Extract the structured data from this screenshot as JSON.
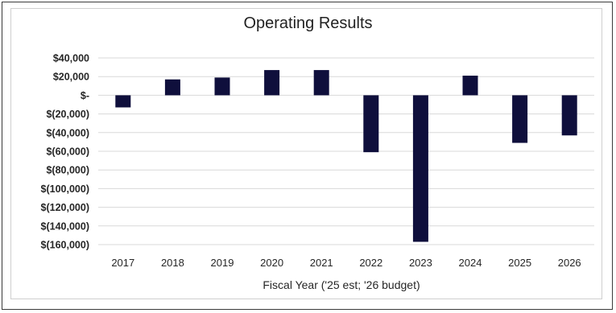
{
  "chart_data": {
    "type": "bar",
    "title": "Operating Results",
    "xlabel": "Fiscal Year ('25 est; '26 budget)",
    "ylabel": "",
    "categories": [
      "2017",
      "2018",
      "2019",
      "2020",
      "2021",
      "2022",
      "2023",
      "2024",
      "2025",
      "2026"
    ],
    "values": [
      -13000,
      17000,
      19000,
      27000,
      27000,
      -61000,
      -157000,
      21000,
      -51000,
      -43000
    ],
    "ylim": [
      -160000,
      40000
    ],
    "yticks": [
      40000,
      20000,
      0,
      -20000,
      -40000,
      -60000,
      -80000,
      -100000,
      -120000,
      -140000,
      -160000
    ],
    "ytick_labels": [
      "$40,000",
      "$20,000",
      "$-",
      "$(20,000)",
      "$(40,000)",
      "$(60,000)",
      "$(80,000)",
      "$(100,000)",
      "$(120,000)",
      "$(140,000)",
      "$(160,000)"
    ],
    "grid": true,
    "legend": "none",
    "bar_color": "#0f0f3c",
    "grid_color": "#d9d9d9"
  }
}
